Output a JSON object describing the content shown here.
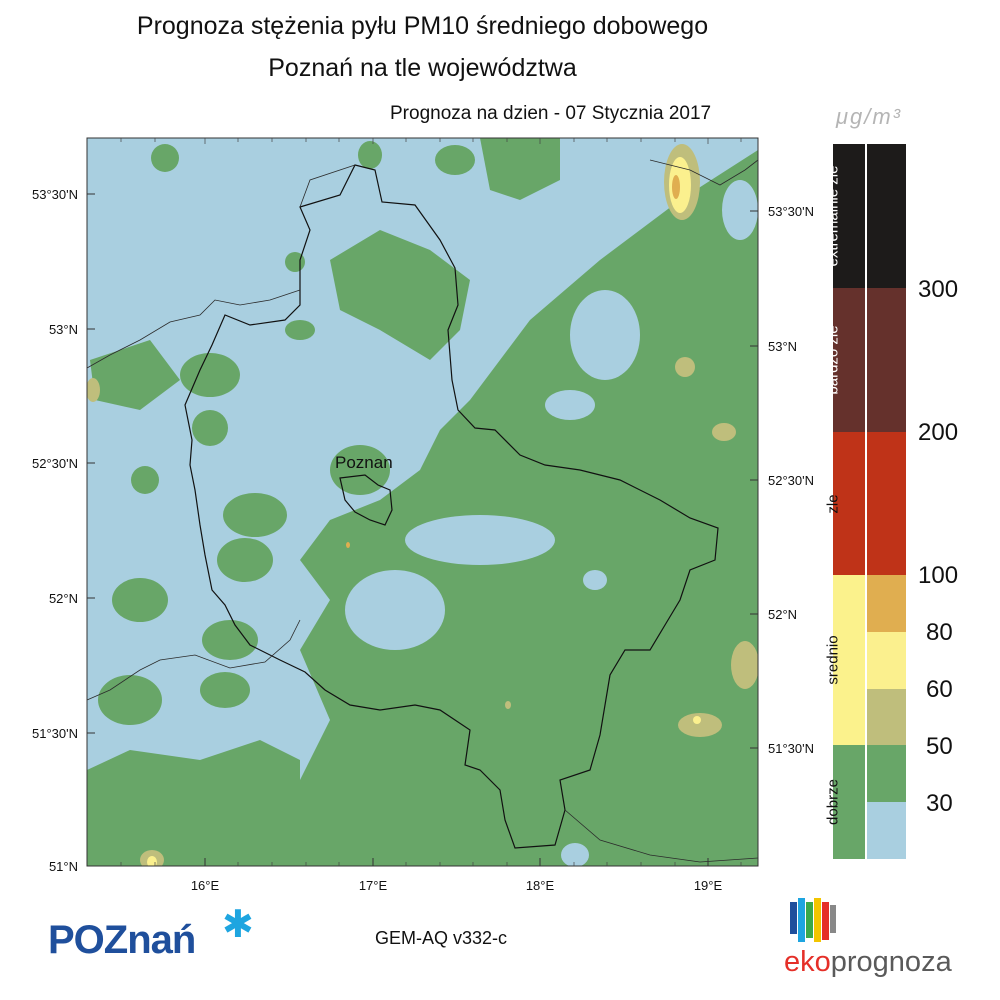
{
  "title_line1": "Prognoza stężenia pyłu PM10 średniego dobowego",
  "title_line2": "Poznań na tle województwa",
  "forecast_date": "Prognoza na dzien -  07 Stycznia 2017",
  "city_label": "Poznan",
  "model_label": "GEM-AQ v332-c",
  "units_label": "μg/m³",
  "lat_labels_left": [
    "53°30'N",
    "53°N",
    "52°30'N",
    "52°N",
    "51°30'N",
    "51°N"
  ],
  "lat_labels_right": [
    "53°30'N",
    "53°N",
    "52°30'N",
    "52°N",
    "51°30'N"
  ],
  "lon_labels": [
    "16°E",
    "17°E",
    "18°E",
    "19°E"
  ],
  "legend": {
    "categories": [
      {
        "label": "extremalnie zle",
        "color": "#1d1b1a"
      },
      {
        "label": "bardzo zle",
        "color": "#65312c"
      },
      {
        "label": "zle",
        "color": "#bf3318"
      },
      {
        "label": "srednio",
        "color": "#fbf28c"
      },
      {
        "label": "dobrze",
        "color": "#68a668"
      }
    ],
    "bins": [
      "#1d1b1a",
      "#65312c",
      "#bf3318",
      "#e0ae50",
      "#fbf08e",
      "#bfbe7c",
      "#68a668",
      "#a9cfe0"
    ],
    "ticks": [
      "300",
      "200",
      "100",
      "80",
      "60",
      "50",
      "30"
    ]
  },
  "logos": {
    "poznan_text": "POZnań",
    "eko_prefix": "eko",
    "eko_suffix": "prognoza"
  }
}
